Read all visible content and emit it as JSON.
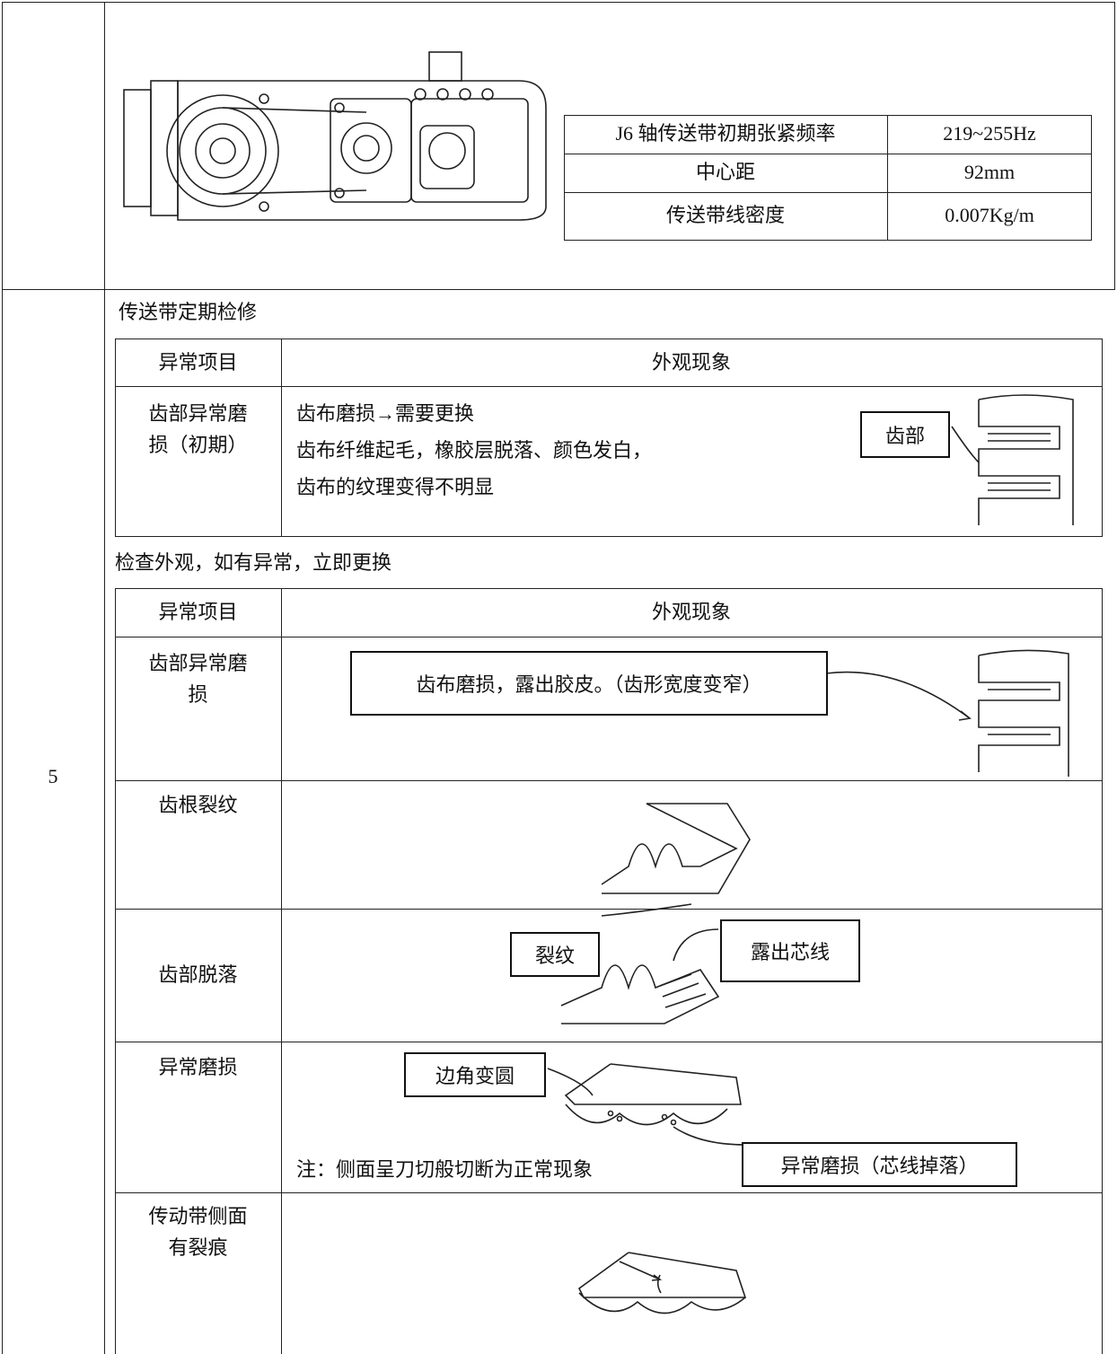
{
  "top": {
    "params": [
      [
        "J6 轴传送带初期张紧频率",
        "219~255Hz"
      ],
      [
        "中心距",
        "92mm"
      ],
      [
        "传送带线密度",
        "0.007Kg/m"
      ]
    ]
  },
  "row_number": "5",
  "section1": {
    "title": "传送带定期检修",
    "header": [
      "异常项目",
      "外观现象"
    ],
    "rows": [
      {
        "item": [
          "齿部异常磨",
          "损（初期）"
        ],
        "lines": [
          "齿布磨损→需要更换",
          "齿布纤维起毛，橡胶层脱落、颜色发白，",
          "齿布的纹理变得不明显"
        ],
        "callouts": [
          "齿部"
        ]
      }
    ]
  },
  "section2": {
    "title": "检查外观，如有异常，立即更换",
    "header": [
      "异常项目",
      "外观现象"
    ],
    "rows": [
      {
        "item": [
          "齿部异常磨",
          "损"
        ],
        "callouts": [
          "齿布磨损，露出胶皮。（齿形宽度变窄）"
        ]
      },
      {
        "item": [
          "齿根裂纹"
        ],
        "callouts": [
          "裂纹"
        ]
      },
      {
        "item": [
          "齿部脱落"
        ],
        "callouts": [
          "露出芯线"
        ]
      },
      {
        "item": [
          "异常磨损"
        ],
        "callouts": [
          "边角变圆",
          "异常磨损（芯线掉落）"
        ],
        "note": "注：侧面呈刀切般切断为正常现象"
      },
      {
        "item": [
          "传动带侧面",
          "有裂痕"
        ]
      }
    ]
  }
}
